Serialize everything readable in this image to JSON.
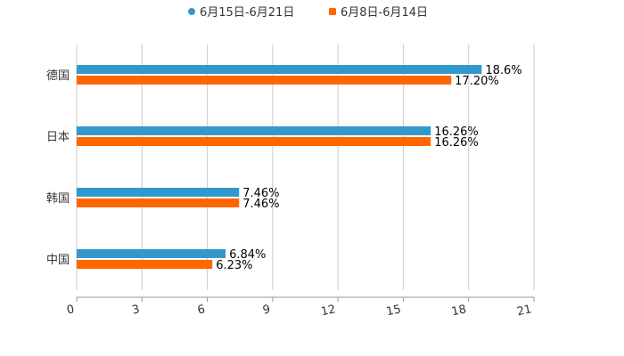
{
  "chart_data": {
    "type": "bar",
    "orientation": "horizontal",
    "categories": [
      "德国",
      "日本",
      "韩国",
      "中国"
    ],
    "series": [
      {
        "name": "6月15日-6月21日",
        "color": "#3399cc",
        "values": [
          18.6,
          16.26,
          7.46,
          6.84
        ],
        "labels": [
          "18.6%",
          "16.26%",
          "7.46%",
          "6.84%"
        ]
      },
      {
        "name": "6月8日-6月14日",
        "color": "#ff6600",
        "values": [
          17.2,
          16.26,
          7.46,
          6.23
        ],
        "labels": [
          "17.20%",
          "16.26%",
          "7.46%",
          "6.23%"
        ]
      }
    ],
    "xlim": [
      0,
      21
    ],
    "xticks": [
      "0",
      "3",
      "6",
      "9",
      "12",
      "15",
      "18",
      "21"
    ],
    "grid": true,
    "legend": "top-center"
  }
}
